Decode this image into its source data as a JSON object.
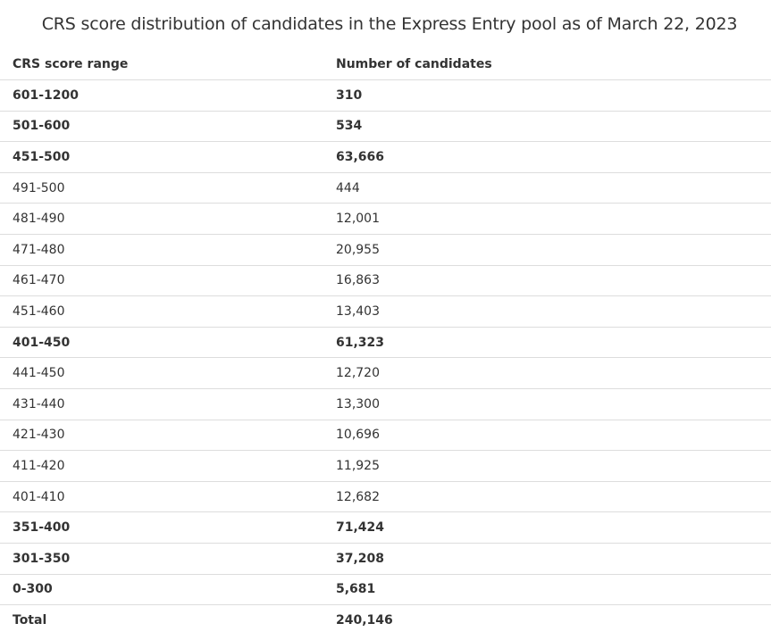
{
  "title": "CRS score distribution of candidates in the Express Entry pool as of March 22, 2023",
  "table": {
    "headers": [
      "CRS score range",
      "Number of candidates"
    ],
    "rows": [
      {
        "range": "601-1200",
        "count": "310",
        "bold": true
      },
      {
        "range": "501-600",
        "count": "534",
        "bold": true
      },
      {
        "range": "451-500",
        "count": "63,666",
        "bold": true
      },
      {
        "range": "491-500",
        "count": "444",
        "bold": false
      },
      {
        "range": "481-490",
        "count": "12,001",
        "bold": false
      },
      {
        "range": "471-480",
        "count": "20,955",
        "bold": false
      },
      {
        "range": "461-470",
        "count": "16,863",
        "bold": false
      },
      {
        "range": "451-460",
        "count": "13,403",
        "bold": false
      },
      {
        "range": "401-450",
        "count": "61,323",
        "bold": true
      },
      {
        "range": "441-450",
        "count": "12,720",
        "bold": false
      },
      {
        "range": "431-440",
        "count": "13,300",
        "bold": false
      },
      {
        "range": "421-430",
        "count": "10,696",
        "bold": false
      },
      {
        "range": "411-420",
        "count": "11,925",
        "bold": false
      },
      {
        "range": "401-410",
        "count": "12,682",
        "bold": false
      },
      {
        "range": "351-400",
        "count": "71,424",
        "bold": true
      },
      {
        "range": "301-350",
        "count": "37,208",
        "bold": true
      },
      {
        "range": "0-300",
        "count": "5,681",
        "bold": true
      },
      {
        "range": "Total",
        "count": "240,146",
        "bold": true
      }
    ]
  }
}
